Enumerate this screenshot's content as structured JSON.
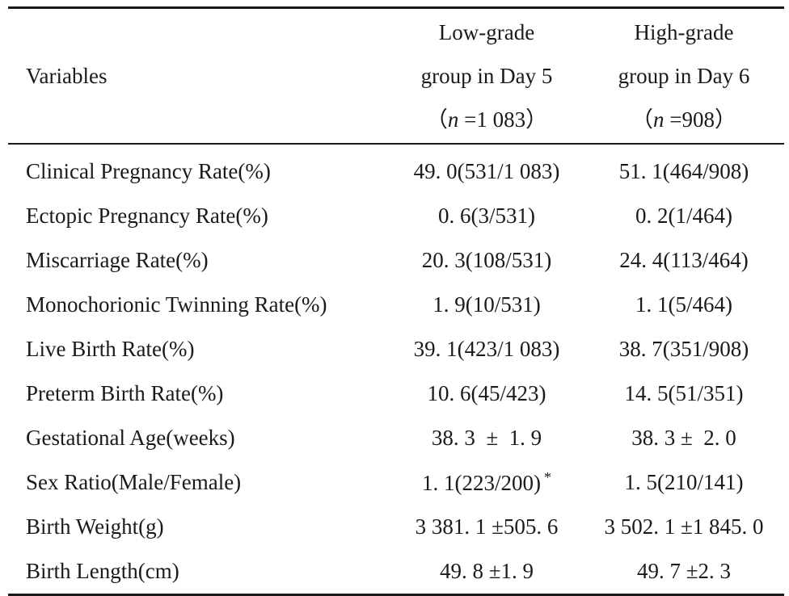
{
  "table": {
    "headers": {
      "variables": "Variables",
      "low": {
        "line1": "Low-grade",
        "line2": "group in Day 5",
        "paren_open": "（",
        "n_symbol": "n",
        "n_rest": " =1 083",
        "paren_close": "）"
      },
      "high": {
        "line1": "High-grade",
        "line2": "group in Day 6",
        "paren_open": "（",
        "n_symbol": "n",
        "n_rest": " =908",
        "paren_close": "）"
      }
    },
    "rows": [
      {
        "variable": "Clinical Pregnancy Rate(%)",
        "low": "49. 0(531/1 083)",
        "high": "51. 1(464/908)"
      },
      {
        "variable": "Ectopic Pregnancy Rate(%)",
        "low": "0. 6(3/531)",
        "high": "0. 2(1/464)"
      },
      {
        "variable": "Miscarriage Rate(%)",
        "low": "20. 3(108/531)",
        "high": "24. 4(113/464)"
      },
      {
        "variable": "Monochorionic Twinning Rate(%)",
        "low": "1. 9(10/531)",
        "high": "1. 1(5/464)"
      },
      {
        "variable": "Live Birth Rate(%)",
        "low": "39. 1(423/1 083)",
        "high": "38. 7(351/908)"
      },
      {
        "variable": "Preterm Birth Rate(%)",
        "low": "10. 6(45/423)",
        "high": "14. 5(51/351)"
      },
      {
        "variable": "Gestational Age(weeks)",
        "low": "38. 3  ±  1. 9",
        "high": "38. 3 ±  2. 0"
      },
      {
        "variable": "Sex Ratio(Male/Female)",
        "low": "1. 1(223/200)",
        "low_mark": "*",
        "high": "1. 5(210/141)"
      },
      {
        "variable": "Birth Weight(g)",
        "low": "3 381. 1 ±505. 6",
        "high": "3 502. 1 ±1 845. 0"
      },
      {
        "variable": "Birth Length(cm)",
        "low": "49. 8 ±1. 9",
        "high": "49. 7 ±2. 3"
      }
    ]
  }
}
